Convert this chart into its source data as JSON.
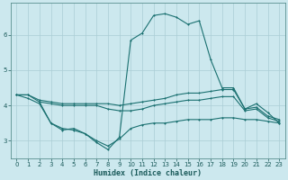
{
  "xlabel": "Humidex (Indice chaleur)",
  "bg_color": "#cce8ee",
  "grid_color": "#aacdd5",
  "line_color": "#1a7070",
  "ylim": [
    2.5,
    6.9
  ],
  "yticks": [
    3,
    4,
    5,
    6
  ],
  "xlim": [
    -0.5,
    23.5
  ],
  "xticks": [
    0,
    1,
    2,
    3,
    4,
    5,
    6,
    7,
    8,
    9,
    10,
    11,
    12,
    13,
    14,
    15,
    16,
    17,
    18,
    19,
    20,
    21,
    22,
    23
  ],
  "line_top_x": [
    0,
    1,
    2,
    3,
    4,
    5,
    6,
    7,
    8,
    9,
    10,
    11,
    12,
    13,
    14,
    15,
    16,
    17,
    18,
    19,
    20,
    21,
    22,
    23
  ],
  "line_top_y": [
    4.3,
    4.3,
    4.15,
    4.1,
    4.05,
    4.05,
    4.05,
    4.05,
    4.05,
    4.0,
    4.05,
    4.1,
    4.15,
    4.2,
    4.3,
    4.35,
    4.35,
    4.4,
    4.45,
    4.45,
    3.9,
    3.95,
    3.7,
    3.6
  ],
  "line_mid_x": [
    0,
    1,
    2,
    3,
    4,
    5,
    6,
    7,
    8,
    9,
    10,
    11,
    12,
    13,
    14,
    15,
    16,
    17,
    18,
    19,
    20,
    21,
    22,
    23
  ],
  "line_mid_y": [
    4.3,
    4.3,
    4.1,
    4.05,
    4.0,
    4.0,
    4.0,
    4.0,
    3.9,
    3.85,
    3.85,
    3.9,
    4.0,
    4.05,
    4.1,
    4.15,
    4.15,
    4.2,
    4.25,
    4.25,
    3.85,
    3.9,
    3.65,
    3.55
  ],
  "line_bot_x": [
    0,
    1,
    2,
    3,
    4,
    5,
    6,
    7,
    8,
    9,
    10,
    11,
    12,
    13,
    14,
    15,
    16,
    17,
    18,
    19,
    20,
    21,
    22,
    23
  ],
  "line_bot_y": [
    4.3,
    4.2,
    4.05,
    3.5,
    3.35,
    3.3,
    3.2,
    3.0,
    2.85,
    3.05,
    3.35,
    3.45,
    3.5,
    3.5,
    3.55,
    3.6,
    3.6,
    3.6,
    3.65,
    3.65,
    3.6,
    3.6,
    3.55,
    3.5
  ],
  "line_main_x": [
    2,
    3,
    4,
    5,
    6,
    7,
    8,
    9,
    10,
    11,
    12,
    13,
    14,
    15,
    16,
    17,
    18,
    19,
    20,
    21,
    22,
    23
  ],
  "line_main_y": [
    4.1,
    3.5,
    3.3,
    3.35,
    3.2,
    2.95,
    2.75,
    3.1,
    5.85,
    6.05,
    6.55,
    6.6,
    6.5,
    6.3,
    6.4,
    5.3,
    4.5,
    4.5,
    3.9,
    4.05,
    3.8,
    3.5
  ]
}
